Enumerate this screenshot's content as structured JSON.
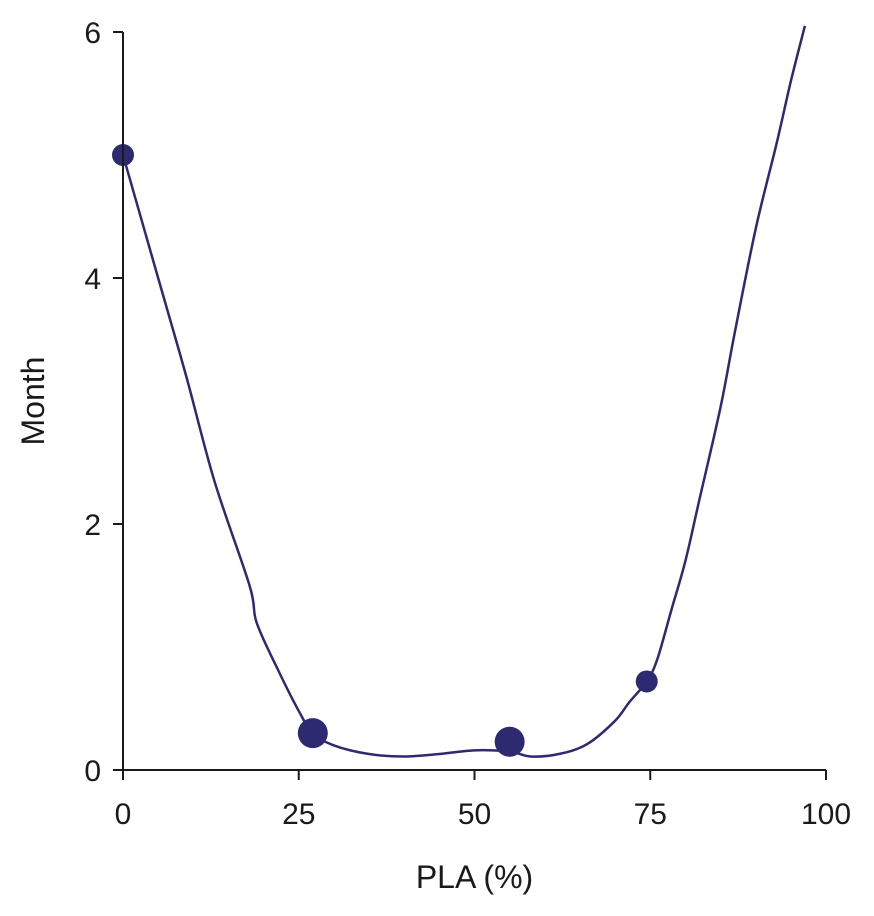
{
  "chart_data": {
    "type": "scatter",
    "xlabel": "PLA (%)",
    "ylabel": "Month",
    "xlim": [
      0,
      100
    ],
    "ylim": [
      0,
      6
    ],
    "x_ticks": [
      "0",
      "25",
      "50",
      "75",
      "100"
    ],
    "y_ticks": [
      "0",
      "2",
      "4",
      "6"
    ],
    "grid": false,
    "colors": {
      "series": "#2e2a72",
      "axis": "#1a1a1a"
    },
    "points": [
      {
        "x": 0,
        "y": 5.0,
        "size": "small"
      },
      {
        "x": 27,
        "y": 0.3,
        "size": "large"
      },
      {
        "x": 55,
        "y": 0.23,
        "size": "large"
      },
      {
        "x": 74.5,
        "y": 0.72,
        "size": "small"
      }
    ],
    "curve": [
      [
        0,
        5.0
      ],
      [
        2,
        4.6
      ],
      [
        5,
        4.0
      ],
      [
        9,
        3.2
      ],
      [
        13,
        2.35
      ],
      [
        18,
        1.5
      ],
      [
        19,
        1.2
      ],
      [
        22,
        0.82
      ],
      [
        25,
        0.48
      ],
      [
        27,
        0.3
      ],
      [
        30,
        0.2
      ],
      [
        35,
        0.13
      ],
      [
        40,
        0.11
      ],
      [
        45,
        0.13
      ],
      [
        50,
        0.16
      ],
      [
        55,
        0.15
      ],
      [
        58,
        0.11
      ],
      [
        62,
        0.13
      ],
      [
        66,
        0.21
      ],
      [
        70,
        0.4
      ],
      [
        72,
        0.55
      ],
      [
        74.5,
        0.72
      ],
      [
        76,
        0.9
      ],
      [
        78,
        1.3
      ],
      [
        80,
        1.7
      ],
      [
        82,
        2.2
      ],
      [
        85,
        2.95
      ],
      [
        87,
        3.55
      ],
      [
        90,
        4.4
      ],
      [
        93,
        5.1
      ],
      [
        95,
        5.6
      ],
      [
        97,
        6.05
      ]
    ]
  }
}
